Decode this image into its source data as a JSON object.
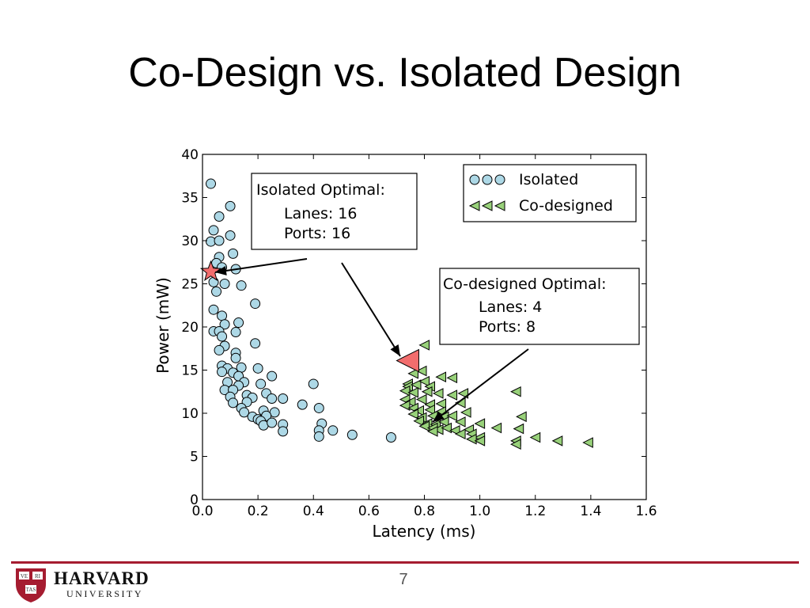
{
  "slide": {
    "title": "Co-Design vs. Isolated Design",
    "page_number": "7"
  },
  "footer": {
    "logo": {
      "wordmark_line1": "HARVARD",
      "wordmark_line2": "UNIVERSITY",
      "shield_text": [
        "VE",
        "RI",
        "TAS"
      ],
      "color": "#a51c30"
    },
    "rule_color": "#a51c30"
  },
  "chart_data": {
    "type": "scatter",
    "xlabel": "Latency (ms)",
    "ylabel": "Power (mW)",
    "xlim": [
      0.0,
      1.6
    ],
    "ylim": [
      0,
      40
    ],
    "xticks": [
      "0.0",
      "0.2",
      "0.4",
      "0.6",
      "0.8",
      "1.0",
      "1.2",
      "1.4",
      "1.6"
    ],
    "yticks": [
      "0",
      "5",
      "10",
      "15",
      "20",
      "25",
      "30",
      "35",
      "40"
    ],
    "grid": false,
    "legend_position": "top-right",
    "series": [
      {
        "name": "Isolated",
        "marker": "circle",
        "color": "#add8e6",
        "points": [
          [
            0.03,
            36.6
          ],
          [
            0.1,
            34.0
          ],
          [
            0.06,
            32.8
          ],
          [
            0.04,
            31.2
          ],
          [
            0.1,
            30.6
          ],
          [
            0.03,
            29.9
          ],
          [
            0.06,
            30.0
          ],
          [
            0.11,
            28.5
          ],
          [
            0.06,
            28.1
          ],
          [
            0.05,
            27.4
          ],
          [
            0.07,
            26.9
          ],
          [
            0.12,
            26.7
          ],
          [
            0.04,
            25.2
          ],
          [
            0.08,
            25.0
          ],
          [
            0.14,
            24.8
          ],
          [
            0.05,
            24.1
          ],
          [
            0.19,
            22.7
          ],
          [
            0.04,
            22.0
          ],
          [
            0.07,
            21.3
          ],
          [
            0.13,
            20.5
          ],
          [
            0.08,
            20.3
          ],
          [
            0.04,
            19.5
          ],
          [
            0.06,
            19.5
          ],
          [
            0.12,
            19.4
          ],
          [
            0.07,
            18.9
          ],
          [
            0.08,
            17.8
          ],
          [
            0.19,
            18.1
          ],
          [
            0.06,
            17.3
          ],
          [
            0.12,
            17.0
          ],
          [
            0.12,
            16.4
          ],
          [
            0.07,
            15.5
          ],
          [
            0.09,
            15.2
          ],
          [
            0.14,
            15.3
          ],
          [
            0.2,
            15.2
          ],
          [
            0.07,
            14.8
          ],
          [
            0.11,
            14.7
          ],
          [
            0.13,
            14.3
          ],
          [
            0.25,
            14.3
          ],
          [
            0.09,
            13.6
          ],
          [
            0.15,
            13.6
          ],
          [
            0.13,
            13.2
          ],
          [
            0.21,
            13.4
          ],
          [
            0.4,
            13.4
          ],
          [
            0.08,
            12.7
          ],
          [
            0.11,
            12.7
          ],
          [
            0.16,
            12.1
          ],
          [
            0.23,
            12.3
          ],
          [
            0.1,
            11.9
          ],
          [
            0.18,
            11.8
          ],
          [
            0.25,
            11.7
          ],
          [
            0.29,
            11.7
          ],
          [
            0.11,
            11.2
          ],
          [
            0.16,
            11.3
          ],
          [
            0.36,
            11.0
          ],
          [
            0.14,
            10.6
          ],
          [
            0.22,
            10.3
          ],
          [
            0.26,
            10.1
          ],
          [
            0.42,
            10.6
          ],
          [
            0.15,
            10.1
          ],
          [
            0.18,
            9.6
          ],
          [
            0.2,
            9.3
          ],
          [
            0.23,
            9.7
          ],
          [
            0.21,
            9.1
          ],
          [
            0.22,
            8.6
          ],
          [
            0.25,
            8.9
          ],
          [
            0.29,
            8.7
          ],
          [
            0.43,
            8.8
          ],
          [
            0.42,
            8.0
          ],
          [
            0.29,
            7.9
          ],
          [
            0.47,
            8.0
          ],
          [
            0.42,
            7.3
          ],
          [
            0.54,
            7.5
          ],
          [
            0.68,
            7.2
          ]
        ]
      },
      {
        "name": "Co-designed",
        "marker": "triangle-left",
        "color": "#98d17a",
        "points": [
          [
            0.8,
            17.9
          ],
          [
            0.79,
            14.9
          ],
          [
            0.76,
            14.6
          ],
          [
            0.74,
            13.4
          ],
          [
            0.74,
            13.1
          ],
          [
            0.77,
            13.3
          ],
          [
            0.8,
            13.7
          ],
          [
            0.82,
            13.1
          ],
          [
            0.86,
            14.2
          ],
          [
            0.9,
            14.1
          ],
          [
            0.73,
            12.6
          ],
          [
            0.76,
            12.4
          ],
          [
            0.81,
            12.5
          ],
          [
            0.85,
            12.3
          ],
          [
            0.9,
            12.1
          ],
          [
            0.94,
            12.3
          ],
          [
            1.13,
            12.5
          ],
          [
            0.73,
            11.6
          ],
          [
            0.75,
            11.3
          ],
          [
            0.79,
            11.6
          ],
          [
            0.82,
            11.0
          ],
          [
            0.86,
            11.1
          ],
          [
            0.93,
            11.2
          ],
          [
            0.73,
            10.9
          ],
          [
            0.76,
            10.6
          ],
          [
            0.78,
            10.3
          ],
          [
            0.82,
            10.4
          ],
          [
            0.86,
            10.2
          ],
          [
            0.95,
            10.1
          ],
          [
            0.76,
            9.9
          ],
          [
            0.79,
            9.5
          ],
          [
            0.83,
            9.7
          ],
          [
            0.87,
            9.6
          ],
          [
            0.9,
            9.7
          ],
          [
            1.15,
            9.6
          ],
          [
            0.78,
            9.1
          ],
          [
            0.81,
            8.8
          ],
          [
            0.84,
            8.7
          ],
          [
            0.87,
            9.0
          ],
          [
            0.93,
            9.0
          ],
          [
            1.0,
            8.8
          ],
          [
            0.8,
            8.5
          ],
          [
            0.83,
            8.3
          ],
          [
            0.85,
            8.1
          ],
          [
            0.88,
            8.3
          ],
          [
            0.91,
            8.0
          ],
          [
            0.96,
            8.1
          ],
          [
            1.06,
            8.3
          ],
          [
            1.14,
            8.2
          ],
          [
            0.83,
            7.9
          ],
          [
            0.93,
            7.6
          ],
          [
            0.97,
            7.6
          ],
          [
            1.0,
            7.2
          ],
          [
            1.13,
            6.8
          ],
          [
            1.2,
            7.2
          ],
          [
            1.28,
            6.8
          ],
          [
            0.97,
            7.0
          ],
          [
            1.0,
            6.8
          ],
          [
            1.39,
            6.6
          ],
          [
            1.13,
            6.4
          ]
        ]
      }
    ],
    "highlighted_points": [
      {
        "label": "Isolated Optimal",
        "x": 0.03,
        "y": 26.4,
        "marker": "star",
        "color": "#f26d6d"
      },
      {
        "label": "Co-designed Optimal",
        "x": 0.74,
        "y": 16.1,
        "marker": "triangle-left",
        "color": "#f26d6d"
      }
    ],
    "annotations": [
      {
        "title": "Isolated Optimal:",
        "lines": [
          "Lanes: 16",
          "Ports: 16"
        ]
      },
      {
        "title": "Co-designed Optimal:",
        "lines": [
          "Lanes: 4",
          "Ports: 8"
        ]
      }
    ]
  }
}
